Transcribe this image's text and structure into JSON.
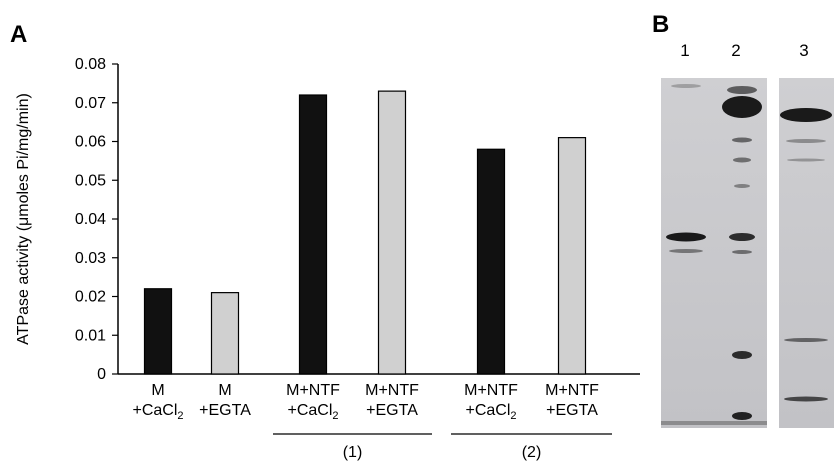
{
  "panels": {
    "a_label": "A",
    "b_label": "B"
  },
  "chart_data": {
    "type": "bar",
    "ylabel": "ATPase activity (μmoles Pi/mg/min)",
    "ylim": [
      0,
      0.08
    ],
    "yticks": [
      "0",
      "0.01",
      "0.02",
      "0.03",
      "0.04",
      "0.05",
      "0.06",
      "0.07",
      "0.08"
    ],
    "categories": [
      {
        "line1": "M",
        "line2": "+CaCl",
        "sub": "2"
      },
      {
        "line1": "M",
        "line2": "+EGTA",
        "sub": ""
      },
      {
        "line1": "M+NTF",
        "line2": "+CaCl",
        "sub": "2"
      },
      {
        "line1": "M+NTF",
        "line2": "+EGTA",
        "sub": ""
      },
      {
        "line1": "M+NTF",
        "line2": "+CaCl",
        "sub": "2"
      },
      {
        "line1": "M+NTF",
        "line2": "+EGTA",
        "sub": ""
      }
    ],
    "values": [
      0.022,
      0.021,
      0.072,
      0.073,
      0.058,
      0.061
    ],
    "colors": [
      "#111111",
      "#d0d0d0",
      "#111111",
      "#d0d0d0",
      "#111111",
      "#d0d0d0"
    ],
    "groups": [
      {
        "label": "(1)",
        "from": 2,
        "to": 3
      },
      {
        "label": "(2)",
        "from": 4,
        "to": 5
      }
    ],
    "grid": false,
    "legend": "none"
  },
  "gel": {
    "lanes": [
      "1",
      "2",
      "3"
    ]
  }
}
